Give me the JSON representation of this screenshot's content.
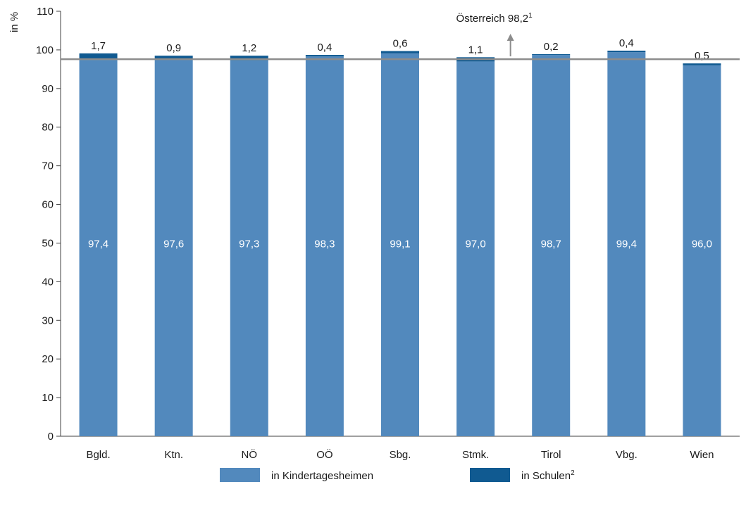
{
  "chart_data": {
    "type": "bar",
    "stacked": true,
    "ylabel": "in %",
    "ylim": [
      0,
      110
    ],
    "yticks": [
      0,
      10,
      20,
      30,
      40,
      50,
      60,
      70,
      80,
      90,
      100,
      110
    ],
    "grid": false,
    "legend_position": "bottom",
    "categories": [
      "Bgld.",
      "Ktn.",
      "NÖ",
      "OÖ",
      "Sbg.",
      "Stmk.",
      "Tirol",
      "Vbg.",
      "Wien"
    ],
    "series": [
      {
        "name": "in Kindertagesheimen",
        "color": "#5289bd",
        "values": [
          97.4,
          97.6,
          97.3,
          98.3,
          99.1,
          97.0,
          98.7,
          99.4,
          96.0
        ],
        "labels": [
          "97,4",
          "97,6",
          "97,3",
          "98,3",
          "99,1",
          "97,0",
          "98,7",
          "99,4",
          "96,0"
        ]
      },
      {
        "name": "in Schulen",
        "name_superscript": "2",
        "color": "#105a91",
        "values": [
          1.7,
          0.9,
          1.2,
          0.4,
          0.6,
          1.1,
          0.2,
          0.4,
          0.5
        ],
        "labels": [
          "1,7",
          "0,9",
          "1,2",
          "0,4",
          "0,6",
          "1,1",
          "0,2",
          "0,4",
          "0,5"
        ]
      }
    ],
    "reference_line": {
      "value": 97.6,
      "label": "Österreich 98,2",
      "superscript": "1",
      "color": "#8c8c8c"
    }
  }
}
